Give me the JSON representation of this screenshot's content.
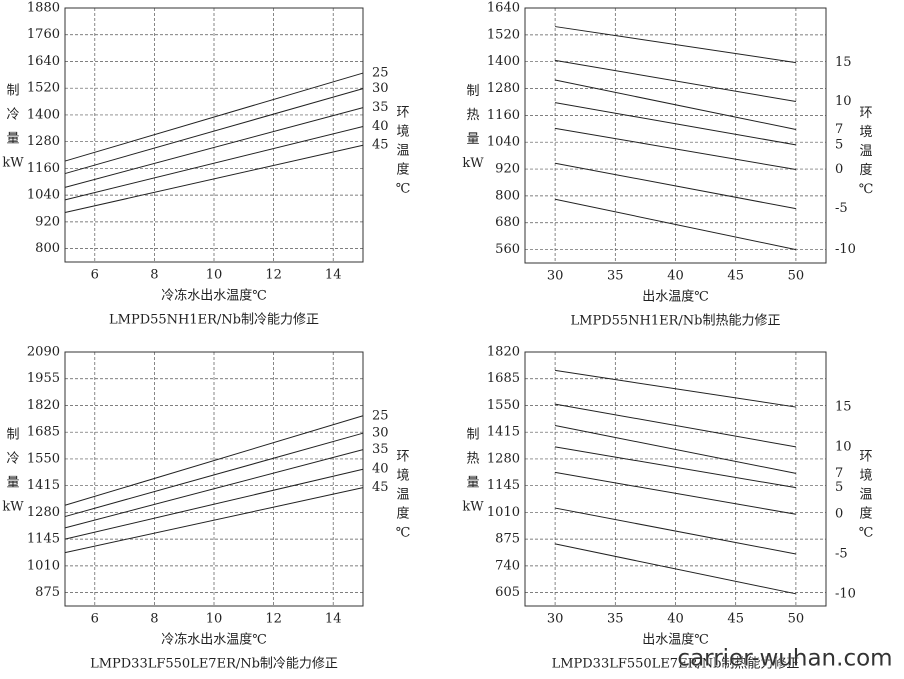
{
  "chart_data": [
    {
      "type": "line",
      "title": "LMPD55NH1ER/Nb制冷能力修正",
      "xlabel": "冷冻水出水温度℃",
      "ylabel": [
        "制",
        "冷",
        "量",
        "kW"
      ],
      "y2label": [
        "环",
        "境",
        "温",
        "度",
        "℃"
      ],
      "x": [
        5,
        15
      ],
      "xlim": [
        5,
        15
      ],
      "xticks": [
        6,
        8,
        10,
        12,
        14
      ],
      "ylim": [
        740,
        1880
      ],
      "yticks": [
        800,
        920,
        1040,
        1160,
        1280,
        1400,
        1520,
        1640,
        1760,
        1880
      ],
      "grid": true,
      "series": [
        {
          "name": "25",
          "color": "#222222",
          "values": [
            1193,
            1588
          ]
        },
        {
          "name": "30",
          "color": "#222222",
          "values": [
            1137,
            1518
          ]
        },
        {
          "name": "35",
          "color": "#222222",
          "values": [
            1075,
            1433
          ]
        },
        {
          "name": "40",
          "color": "#222222",
          "values": [
            1019,
            1348
          ]
        },
        {
          "name": "45",
          "color": "#222222",
          "values": [
            962,
            1264
          ]
        }
      ]
    },
    {
      "type": "line",
      "title": "LMPD55NH1ER/Nb制热能力修正",
      "xlabel": "出水温度℃",
      "ylabel": [
        "制",
        "热",
        "量",
        "kW"
      ],
      "y2label": [
        "环",
        "境",
        "温",
        "度",
        "℃"
      ],
      "x": [
        30,
        50
      ],
      "xlim": [
        27.5,
        52.5
      ],
      "xticks": [
        30,
        35,
        40,
        45,
        50
      ],
      "ylim": [
        500,
        1640
      ],
      "yticks": [
        560,
        680,
        800,
        920,
        1040,
        1160,
        1280,
        1400,
        1520,
        1640
      ],
      "grid": true,
      "series": [
        {
          "name": "15",
          "color": "#222222",
          "values": [
            1557,
            1396
          ]
        },
        {
          "name": "10",
          "color": "#222222",
          "values": [
            1406,
            1222
          ]
        },
        {
          "name": "7",
          "color": "#222222",
          "values": [
            1318,
            1097
          ]
        },
        {
          "name": "5",
          "color": "#222222",
          "values": [
            1217,
            1028
          ]
        },
        {
          "name": "0",
          "color": "#222222",
          "values": [
            1102,
            918
          ]
        },
        {
          "name": "-5",
          "color": "#222222",
          "values": [
            946,
            743
          ]
        },
        {
          "name": "-10",
          "color": "#222222",
          "values": [
            785,
            560
          ]
        }
      ]
    },
    {
      "type": "line",
      "title": "LMPD33LF550LE7ER/Nb制冷能力修正",
      "xlabel": "冷冻水出水温度℃",
      "ylabel": [
        "制",
        "冷",
        "量",
        "kW"
      ],
      "y2label": [
        "环",
        "境",
        "温",
        "度",
        "℃"
      ],
      "x": [
        5,
        15
      ],
      "xlim": [
        5,
        15
      ],
      "xticks": [
        6,
        8,
        10,
        12,
        14
      ],
      "ylim": [
        807.5,
        2090
      ],
      "yticks": [
        875,
        1010,
        1145,
        1280,
        1415,
        1550,
        1685,
        1820,
        1955,
        2090
      ],
      "grid": true,
      "series": [
        {
          "name": "25",
          "color": "#222222",
          "values": [
            1316,
            1768
          ]
        },
        {
          "name": "30",
          "color": "#222222",
          "values": [
            1259,
            1680
          ]
        },
        {
          "name": "35",
          "color": "#222222",
          "values": [
            1202,
            1597
          ]
        },
        {
          "name": "40",
          "color": "#222222",
          "values": [
            1145,
            1498
          ]
        },
        {
          "name": "45",
          "color": "#222222",
          "values": [
            1077,
            1405
          ]
        }
      ]
    },
    {
      "type": "line",
      "title": "LMPD33LF550LE7ER/Nb制热能力修正",
      "xlabel": "出水温度℃",
      "ylabel": [
        "制",
        "热",
        "量",
        "kW"
      ],
      "y2label": [
        "环",
        "境",
        "温",
        "度",
        "℃"
      ],
      "x": [
        30,
        50
      ],
      "xlim": [
        27.5,
        52.5
      ],
      "xticks": [
        30,
        35,
        40,
        45,
        50
      ],
      "ylim": [
        537.5,
        1820
      ],
      "yticks": [
        605,
        740,
        875,
        1010,
        1145,
        1280,
        1415,
        1550,
        1685,
        1820
      ],
      "grid": true,
      "series": [
        {
          "name": "15",
          "color": "#222222",
          "values": [
            1727,
            1542
          ]
        },
        {
          "name": "10",
          "color": "#222222",
          "values": [
            1557,
            1341
          ]
        },
        {
          "name": "7",
          "color": "#222222",
          "values": [
            1449,
            1207
          ]
        },
        {
          "name": "5",
          "color": "#222222",
          "values": [
            1341,
            1135
          ]
        },
        {
          "name": "0",
          "color": "#222222",
          "values": [
            1212,
            1001
          ]
        },
        {
          "name": "-5",
          "color": "#222222",
          "values": [
            1032,
            800
          ]
        },
        {
          "name": "-10",
          "color": "#222222",
          "values": [
            851,
            599
          ]
        }
      ]
    }
  ],
  "watermark": "carrier-wuhan.com"
}
